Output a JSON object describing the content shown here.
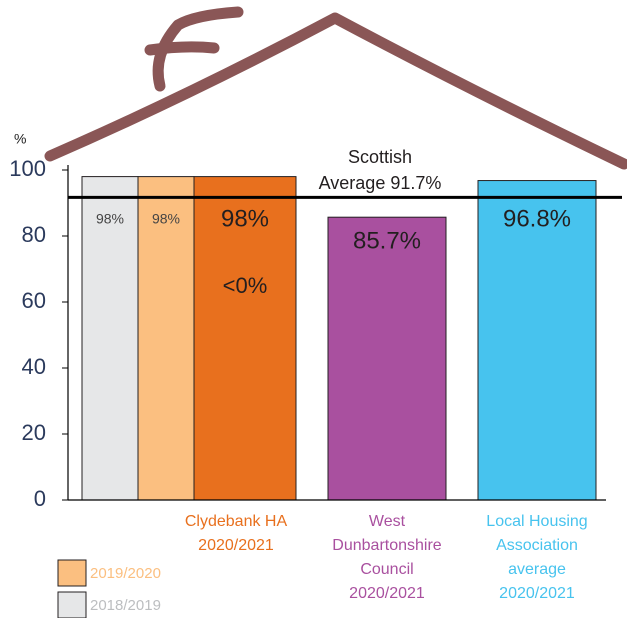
{
  "chart_data": {
    "type": "bar",
    "y_unit": "%",
    "ylim": [
      0,
      100
    ],
    "yticks": [
      0,
      20,
      40,
      60,
      80,
      100
    ],
    "reference": {
      "value": 91.7,
      "label": [
        "Scottish",
        "Average 91.7%"
      ]
    },
    "groups": [
      {
        "label": [
          "Clydebank HA",
          "2020/2021"
        ],
        "color": "#e8701e",
        "value": 98,
        "value_label": "98%",
        "note": "<0%",
        "previous": [
          {
            "name": "2018/2019",
            "color": "#e6e7e8",
            "value": 98,
            "value_label": "98%"
          },
          {
            "name": "2019/2020",
            "color": "#fbbf80",
            "value": 98,
            "value_label": "98%"
          }
        ]
      },
      {
        "label": [
          "West",
          "Dunbartonshire",
          "Council",
          "2020/2021"
        ],
        "color": "#a9509f",
        "value": 85.7,
        "value_label": "85.7%"
      },
      {
        "label": [
          "Local Housing",
          "Association",
          "average",
          "2020/2021"
        ],
        "color": "#47c3ee",
        "value": 96.8,
        "value_label": "96.8%"
      }
    ]
  }
}
